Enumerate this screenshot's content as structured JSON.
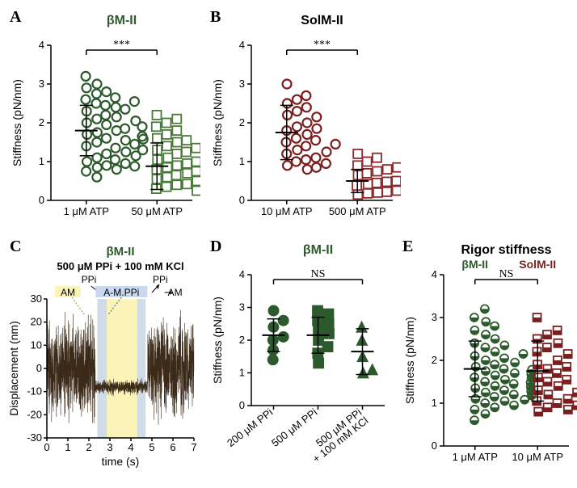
{
  "colors": {
    "green_dark": "#2d5a2d",
    "green_med": "#4a7a3a",
    "red_dark": "#7a1f1f",
    "red_med": "#8a2a2a",
    "yellow_hl": "#fcf3b8",
    "blue_hl": "#c8d8f0",
    "trace_dark": "#3b2a18"
  },
  "panelA": {
    "label": "A",
    "title": "βM-II",
    "title_color": "#2d5a2d",
    "ylabel": "Stiffness (pN/nm)",
    "ylim": [
      0,
      4
    ],
    "ytick_step": 1,
    "x_categories": [
      "1 μM ATP",
      "50 μM ATP"
    ],
    "sig_text": "***",
    "series": [
      {
        "marker": "circle",
        "filled": false,
        "color": "#2d5a2d",
        "stroke_w": 2.2,
        "mean": 1.8,
        "sd": 0.65,
        "points": [
          1.0,
          1.1,
          0.85,
          0.9,
          1.4,
          1.5,
          1.6,
          1.05,
          1.2,
          2.0,
          2.3,
          2.5,
          2.1,
          1.7,
          1.75,
          1.8,
          2.2,
          2.6,
          2.9,
          3.0,
          3.2,
          0.75,
          1.35,
          1.55,
          1.95,
          2.45,
          2.75,
          0.6,
          0.95,
          1.25,
          1.85,
          2.15,
          2.4,
          2.65,
          1.15,
          1.45,
          1.65,
          2.05,
          2.35,
          2.55,
          0.8,
          0.88,
          1.3,
          1.58,
          1.9,
          2.8
        ]
      },
      {
        "marker": "square",
        "filled": false,
        "color": "#4a7a3a",
        "stroke_w": 1.8,
        "mean": 0.88,
        "sd": 0.6,
        "points": [
          0.3,
          0.35,
          0.4,
          0.42,
          0.5,
          0.55,
          0.6,
          0.65,
          0.7,
          0.75,
          0.8,
          0.85,
          0.9,
          0.95,
          1.0,
          1.05,
          1.1,
          1.2,
          1.3,
          1.4,
          1.5,
          1.6,
          1.7,
          1.8,
          1.9,
          2.0,
          2.1,
          2.2,
          0.45,
          0.52,
          0.58,
          0.62,
          0.68,
          0.72,
          0.78,
          0.82,
          0.88,
          0.92,
          1.15,
          1.25,
          1.35,
          1.45,
          1.55,
          0.25
        ]
      }
    ]
  },
  "panelB": {
    "label": "B",
    "title": "SolM-II",
    "title_color": "#000",
    "ylabel": "Stiffness (pN/nm)",
    "ylim": [
      0,
      4
    ],
    "ytick_step": 1,
    "x_categories": [
      "10 μM ATP",
      "500 μM ATP"
    ],
    "sig_text": "***",
    "series": [
      {
        "marker": "circle",
        "filled": false,
        "color": "#7a1f1f",
        "stroke_w": 2.2,
        "mean": 1.75,
        "sd": 0.7,
        "points": [
          0.9,
          1.0,
          1.05,
          1.1,
          1.2,
          1.3,
          1.4,
          1.5,
          1.6,
          1.7,
          1.8,
          1.9,
          2.0,
          2.2,
          2.3,
          2.4,
          2.5,
          2.6,
          2.7,
          3.0,
          0.8,
          0.85,
          1.25,
          1.55,
          1.85,
          2.15,
          0.95,
          1.45
        ]
      },
      {
        "marker": "square",
        "filled": false,
        "color": "#8a2a2a",
        "stroke_w": 1.8,
        "mean": 0.5,
        "sd": 0.3,
        "points": [
          0.15,
          0.18,
          0.2,
          0.22,
          0.25,
          0.28,
          0.3,
          0.32,
          0.35,
          0.38,
          0.4,
          0.42,
          0.45,
          0.48,
          0.5,
          0.55,
          0.6,
          0.65,
          0.7,
          0.75,
          0.8,
          0.85,
          0.9,
          1.0,
          1.1,
          1.2,
          0.27,
          0.33,
          0.37,
          0.43,
          0.58,
          0.62,
          0.47,
          0.53
        ]
      }
    ]
  },
  "panelC": {
    "label": "C",
    "title": "βM-II",
    "subtitle": "500 μM PPi + 100 mM KCl",
    "xlabel": "time (s)",
    "ylabel": "Displacement (nm)",
    "xlim": [
      0,
      7
    ],
    "xtick_step": 1,
    "ylim": [
      -30,
      30
    ],
    "ytick_step": 10,
    "annotations": {
      "am_left": "AM",
      "ppi_left": "PPi",
      "middle": "A-M.PPi",
      "ppi_right": "PPi",
      "am_right": "AM"
    },
    "highlights": {
      "yellow_range": [
        2.4,
        4.7
      ],
      "blue_ranges": [
        [
          2.4,
          2.85
        ],
        [
          4.3,
          4.7
        ]
      ]
    },
    "event_window": [
      2.3,
      4.8
    ],
    "event_disp": -8,
    "free_amp_nm": 25,
    "bound_noise_nm": 4
  },
  "panelD": {
    "label": "D",
    "title": "βM-II",
    "title_color": "#2d5a2d",
    "ylabel": "Stiffness (pN/nm)",
    "ylim": [
      0,
      4
    ],
    "ytick_step": 1,
    "x_categories": [
      "200 μM PPi",
      "500 μM PPi",
      "500 μM PPi\\n+ 100 mM KCl"
    ],
    "sig_text": "NS",
    "series": [
      {
        "marker": "circle",
        "filled": true,
        "color": "#2d5a2d",
        "mean": 2.15,
        "sd": 0.5,
        "points": [
          1.4,
          1.7,
          2.0,
          2.1,
          2.4,
          2.6,
          2.9
        ]
      },
      {
        "marker": "square",
        "filled": true,
        "color": "#2d5a2d",
        "mean": 2.15,
        "sd": 0.55,
        "points": [
          1.3,
          1.6,
          1.8,
          2.0,
          2.2,
          2.3,
          2.5,
          2.6,
          2.8,
          2.9
        ]
      },
      {
        "marker": "triangle",
        "filled": true,
        "color": "#2d5a2d",
        "mean": 1.65,
        "sd": 0.7,
        "points": [
          1.0,
          1.1,
          1.5,
          2.0,
          2.4
        ]
      }
    ]
  },
  "panelE": {
    "label": "E",
    "title": "Rigor stiffness",
    "title_color": "#000",
    "subtitle_left": "βM-II",
    "subtitle_right": "SolM-II",
    "ylabel": "Stiffness (pN/nm)",
    "ylim": [
      0,
      4
    ],
    "ytick_step": 1,
    "x_categories": [
      "1 μM ATP",
      "10 μM ATP"
    ],
    "sig_text": "NS",
    "series": [
      {
        "marker": "half-circle",
        "color": "#2d5a2d",
        "mean": 1.8,
        "sd": 0.65,
        "points": [
          0.6,
          0.75,
          0.85,
          0.9,
          1.0,
          1.05,
          1.1,
          1.15,
          1.2,
          1.25,
          1.3,
          1.35,
          1.4,
          1.45,
          1.5,
          1.55,
          1.6,
          1.65,
          1.7,
          1.75,
          1.8,
          1.85,
          1.9,
          1.95,
          2.0,
          2.1,
          2.2,
          2.3,
          2.4,
          2.5,
          2.6,
          2.7,
          2.8,
          2.9,
          3.0,
          3.2,
          0.95,
          1.08,
          1.18,
          1.28,
          1.38,
          1.48,
          1.58,
          1.68,
          1.78,
          2.05,
          2.15,
          2.35
        ]
      },
      {
        "marker": "half-square",
        "color": "#7a1f1f",
        "mean": 1.75,
        "sd": 0.7,
        "points": [
          0.8,
          0.9,
          1.0,
          1.05,
          1.1,
          1.2,
          1.3,
          1.4,
          1.5,
          1.6,
          1.7,
          1.8,
          1.9,
          2.0,
          2.2,
          2.3,
          2.4,
          2.5,
          2.6,
          2.7,
          3.0,
          0.85,
          1.25,
          1.55,
          1.85,
          2.15,
          0.95,
          1.45,
          1.15,
          1.35
        ]
      }
    ]
  }
}
